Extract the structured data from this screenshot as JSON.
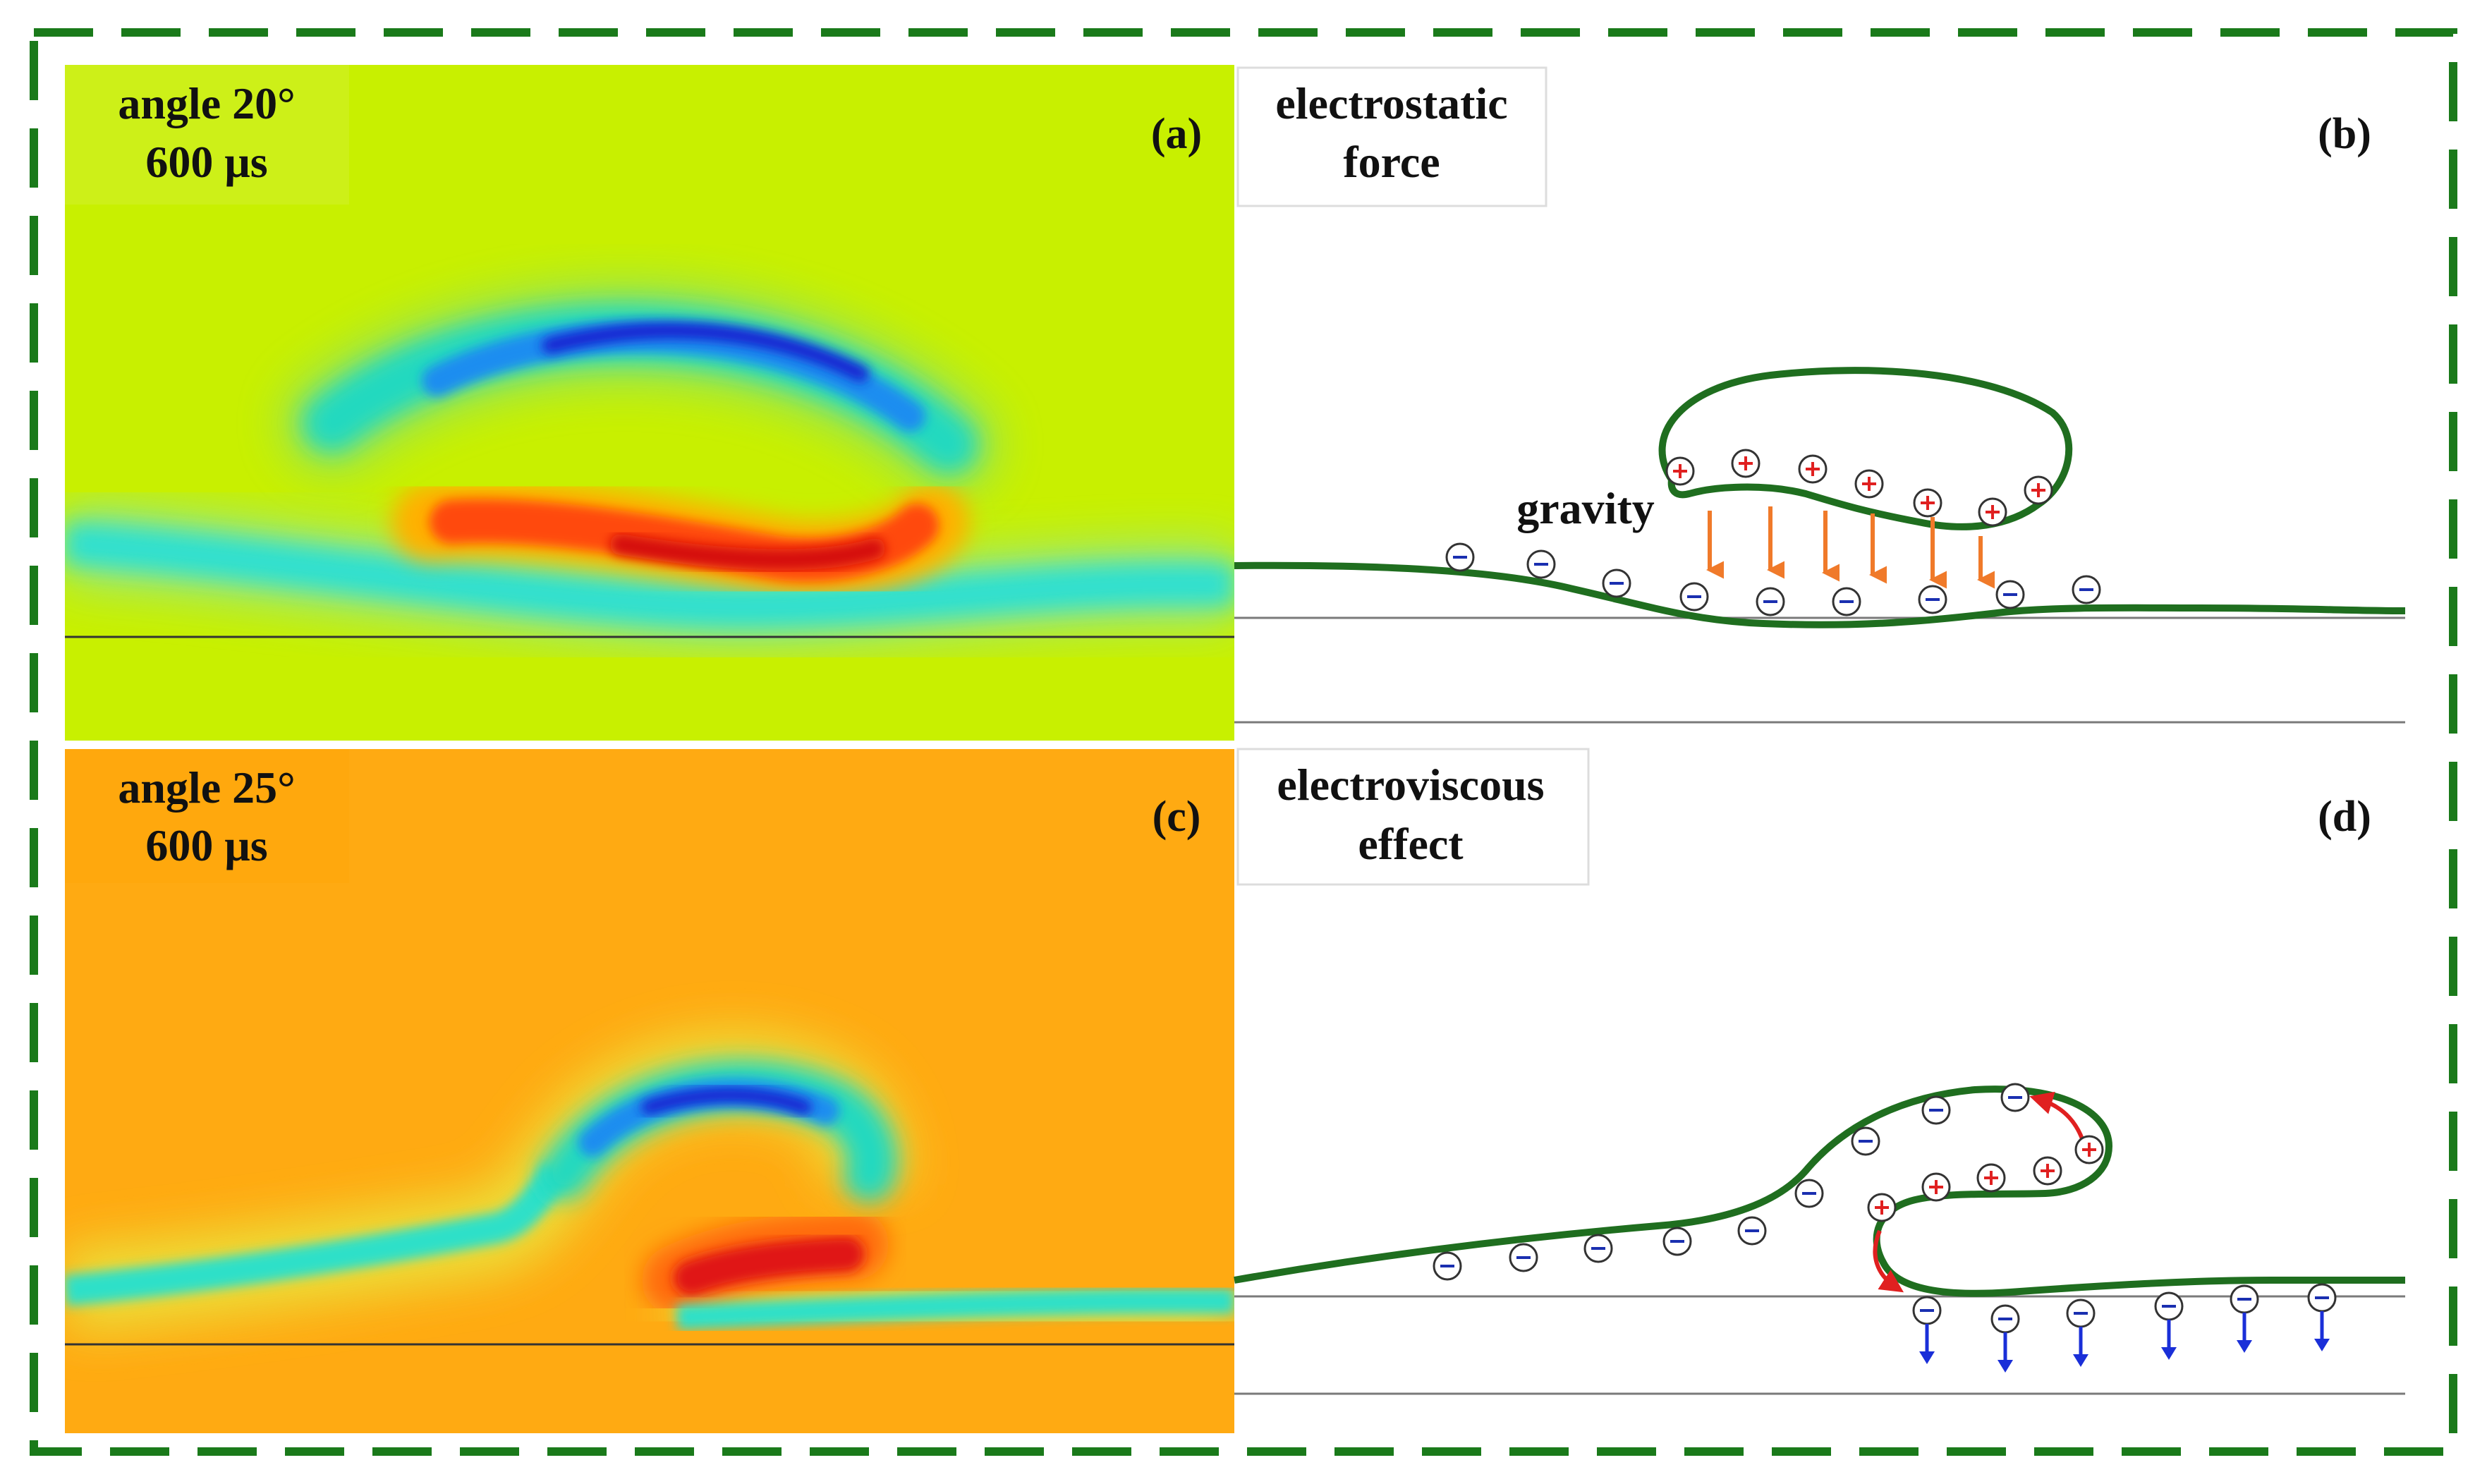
{
  "colors": {
    "border": "#1a7a1a",
    "interface_line": "#1f6e1f",
    "positive": "#e02020",
    "negative": "#1a2fb0",
    "gravity_arrow": "#f07a2a",
    "viscous_arrow": "#1a2fd8",
    "curl_arrow": "#e02020"
  },
  "panels": {
    "a": {
      "id": "(a)",
      "label_line1": "angle 20°",
      "label_line2": "600 μs",
      "background": "#c8f000"
    },
    "b": {
      "id": "(b)",
      "label_line1": "electrostatic",
      "label_line2": "force",
      "gravity_label": "gravity"
    },
    "c": {
      "id": "(c)",
      "label_line1": "angle 25°",
      "label_line2": "600 μs",
      "background": "#ffaa12"
    },
    "d": {
      "id": "(d)",
      "label_line1": "electroviscous",
      "label_line2": "effect"
    }
  },
  "charges": {
    "positive_symbol": "+",
    "negative_symbol": "−"
  },
  "icons": {
    "positive_charge": "circled-plus-icon",
    "negative_charge": "circled-minus-icon",
    "gravity": "down-arrow-icon",
    "viscous": "down-arrow-icon",
    "curl": "curved-arrow-icon"
  }
}
